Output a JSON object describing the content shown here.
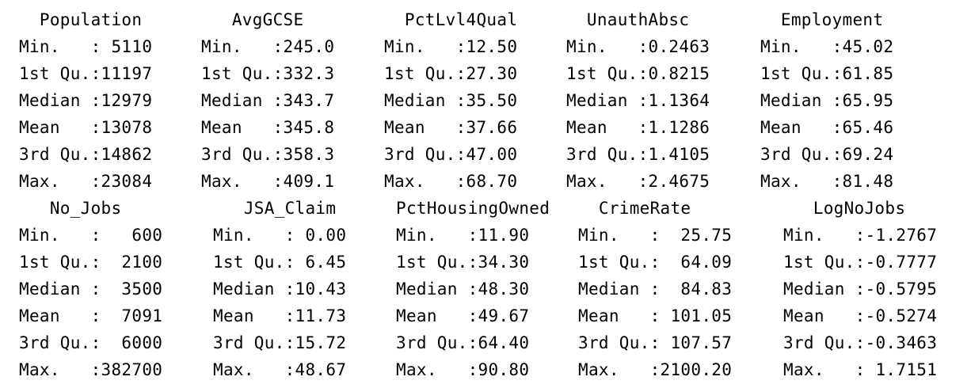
{
  "blocks": [
    {
      "rows": [
        [
          "  Population",
          "   AvgGCSE",
          "  PctLvl4Qual",
          "  UnauthAbsc",
          "  Employment"
        ],
        [
          "Min.   : 5110",
          "Min.   :245.0",
          "Min.   :12.50",
          "Min.   :0.2463",
          "Min.   :45.02"
        ],
        [
          "1st Qu.:11197",
          "1st Qu.:332.3",
          "1st Qu.:27.30",
          "1st Qu.:0.8215",
          "1st Qu.:61.85"
        ],
        [
          "Median :12979",
          "Median :343.7",
          "Median :35.50",
          "Median :1.1364",
          "Median :65.95"
        ],
        [
          "Mean   :13078",
          "Mean   :345.8",
          "Mean   :37.66",
          "Mean   :1.1286",
          "Mean   :65.46"
        ],
        [
          "3rd Qu.:14862",
          "3rd Qu.:358.3",
          "3rd Qu.:47.00",
          "3rd Qu.:1.4105",
          "3rd Qu.:69.24"
        ],
        [
          "Max.   :23084",
          "Max.   :409.1",
          "Max.   :68.70",
          "Max.   :2.4675",
          "Max.   :81.48"
        ]
      ]
    },
    {
      "rows": [
        [
          "   No_Jobs",
          "   JSA_Claim",
          "PctHousingOwned",
          "  CrimeRate",
          "    LogNoJobs"
        ],
        [
          "Min.   :   600",
          "Min.   : 0.00",
          "Min.   :11.90",
          "Min.   :  25.75",
          "Min.   :-1.2767"
        ],
        [
          "1st Qu.:  2100",
          "1st Qu.: 6.45",
          "1st Qu.:34.30",
          "1st Qu.:  64.09",
          "1st Qu.:-0.7777"
        ],
        [
          "Median :  3500",
          "Median :10.43",
          "Median :48.30",
          "Median :  84.83",
          "Median :-0.5795"
        ],
        [
          "Mean   :  7091",
          "Mean   :11.73",
          "Mean   :49.67",
          "Mean   : 101.05",
          "Mean   :-0.5274"
        ],
        [
          "3rd Qu.:  6000",
          "3rd Qu.:15.72",
          "3rd Qu.:64.40",
          "3rd Qu.: 107.57",
          "3rd Qu.:-0.3463"
        ],
        [
          "Max.   :382700",
          "Max.   :48.67",
          "Max.   :90.80",
          "Max.   :2100.20",
          "Max.   : 1.7151"
        ]
      ]
    }
  ]
}
